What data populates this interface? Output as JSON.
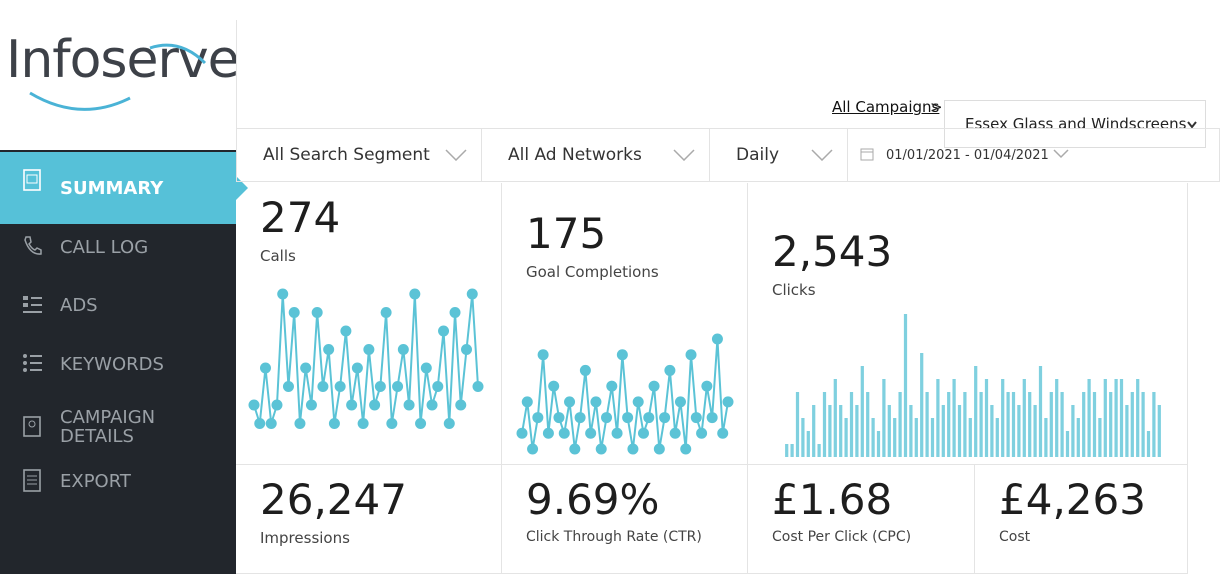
{
  "logo": "Infoserve",
  "breadcrumb": {
    "link": "All Campaigns",
    "separator": ">",
    "campaign": "Essex Glass and Windscreens"
  },
  "filters": [
    "All Search Segment",
    "All Ad Networks",
    "Daily",
    "01/01/2021 - 01/04/2021"
  ],
  "nav": [
    "SUMMARY",
    "CALL LOG",
    "ADS",
    "KEYWORDS",
    "CAMPAIGN DETAILS",
    "EXPORT"
  ],
  "metrics": [
    {
      "value": "274",
      "label": "Calls",
      "chart": {
        "type": "line",
        "color": "#5bc3d6",
        "values": [
          2,
          1,
          4,
          1,
          2,
          8,
          3,
          7,
          1,
          4,
          2,
          7,
          3,
          5,
          1,
          3,
          6,
          2,
          4,
          1,
          5,
          2,
          3,
          7,
          1,
          3,
          5,
          2,
          8,
          1,
          4,
          2,
          3,
          6,
          1,
          7,
          2,
          5,
          8,
          3
        ]
      }
    },
    {
      "value": "175",
      "label": "Goal Completions",
      "chart": {
        "type": "line",
        "color": "#5bc3d6",
        "values": [
          1,
          3,
          0,
          2,
          6,
          1,
          4,
          2,
          1,
          3,
          0,
          2,
          5,
          1,
          3,
          0,
          2,
          4,
          1,
          6,
          2,
          0,
          3,
          1,
          2,
          4,
          0,
          2,
          5,
          1,
          3,
          0,
          6,
          2,
          1,
          4,
          2,
          7,
          1,
          3
        ]
      }
    },
    {
      "value": "2,543",
      "label": "Clicks",
      "chart": {
        "type": "bar",
        "color": "#7fd0df",
        "values": [
          1,
          1,
          5,
          3,
          2,
          4,
          1,
          5,
          4,
          6,
          4,
          3,
          5,
          4,
          7,
          5,
          3,
          2,
          6,
          4,
          3,
          5,
          11,
          4,
          3,
          8,
          5,
          3,
          6,
          4,
          5,
          6,
          4,
          5,
          3,
          7,
          5,
          6,
          4,
          3,
          6,
          5,
          5,
          4,
          6,
          5,
          4,
          7,
          3,
          5,
          6,
          5,
          2,
          4,
          3,
          5,
          6,
          5,
          3,
          6,
          5,
          6,
          6,
          4,
          5,
          6,
          5,
          2,
          5,
          4
        ]
      }
    },
    {
      "value": "26,247",
      "label": "Impressions"
    },
    {
      "value": "9.69%",
      "label": "Click Through Rate (CTR)"
    },
    {
      "value": "£1.68",
      "label": "Cost Per Click (CPC)"
    },
    {
      "value": "£4,263",
      "label": "Cost"
    }
  ]
}
